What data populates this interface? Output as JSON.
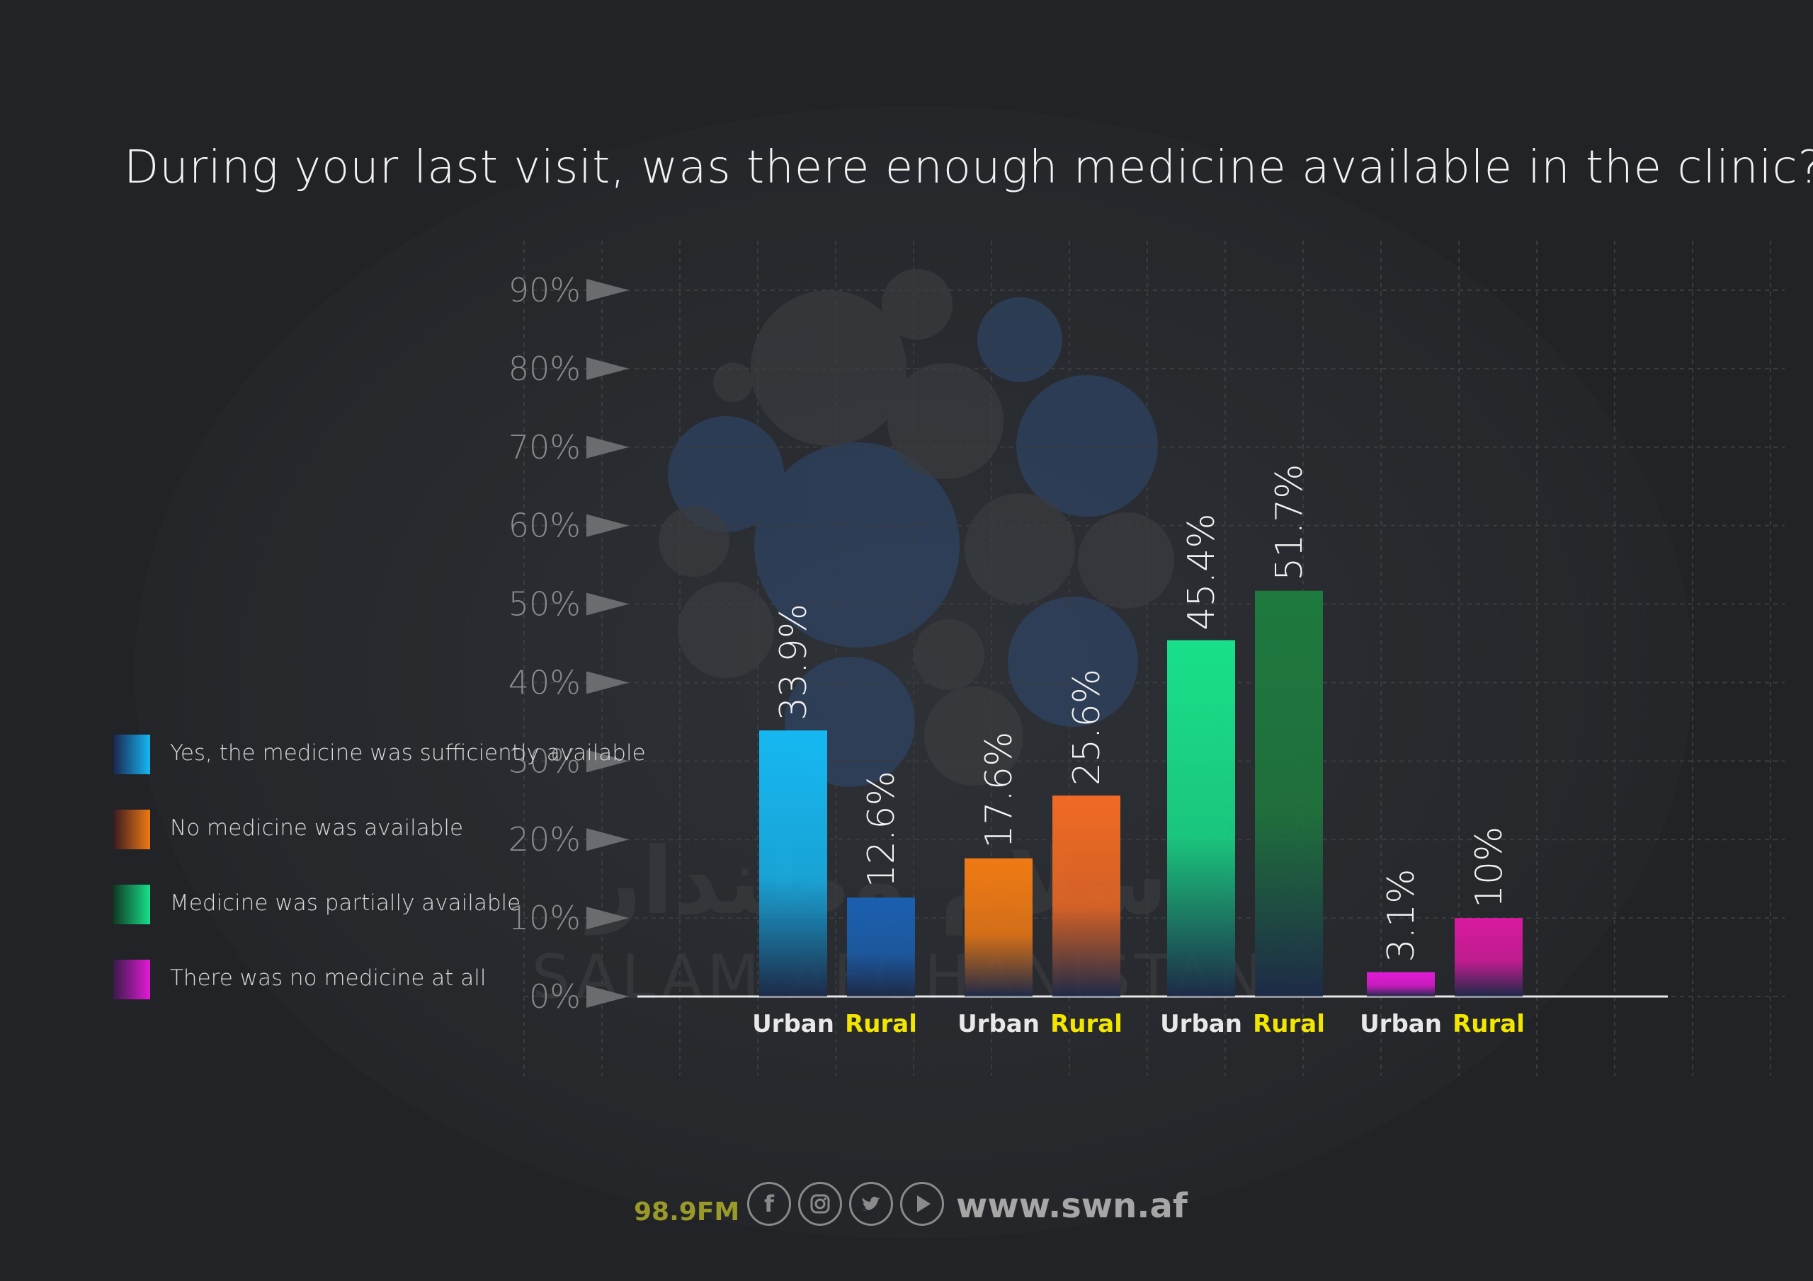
{
  "title": "During your last visit, was there enough medicine available in the clinic?",
  "colors": {
    "background": "#222326",
    "series": [
      "#16b8f2",
      "#f07a14",
      "#18e08a",
      "#e21ad6"
    ],
    "rural_bar": [
      "#1a5fb0",
      "#f06a24",
      "#1e7a3e",
      "#d81aa0"
    ],
    "urban_label": "#e8e8e8",
    "rural_label": "#f2e600"
  },
  "legend": [
    {
      "label": "Yes, the medicine was sufficiently available"
    },
    {
      "label": "No medicine was available"
    },
    {
      "label": "Medicine was partially available"
    },
    {
      "label": "There was no medicine at all"
    }
  ],
  "chart_data": {
    "type": "bar",
    "title": "During your last visit, was there enough medicine available in the clinic?",
    "ylim": [
      0,
      90
    ],
    "yticks": [
      "0%",
      "10%",
      "20%",
      "30%",
      "40%",
      "50%",
      "60%",
      "70%",
      "80%",
      "90%"
    ],
    "grid": true,
    "legend_position": "left",
    "groups": [
      {
        "series": "Yes, the medicine was sufficiently available",
        "bars": [
          {
            "category": "Urban",
            "value": 33.9,
            "label": "33.9%"
          },
          {
            "category": "Rural",
            "value": 12.6,
            "label": "12.6%"
          }
        ]
      },
      {
        "series": "No medicine was available",
        "bars": [
          {
            "category": "Urban",
            "value": 17.6,
            "label": "17.6%"
          },
          {
            "category": "Rural",
            "value": 25.6,
            "label": "25.6%"
          }
        ]
      },
      {
        "series": "Medicine was partially available",
        "bars": [
          {
            "category": "Urban",
            "value": 45.4,
            "label": "45.4%"
          },
          {
            "category": "Rural",
            "value": 51.7,
            "label": "51.7%"
          }
        ]
      },
      {
        "series": "There was no medicine at all",
        "bars": [
          {
            "category": "Urban",
            "value": 3.1,
            "label": "3.1%"
          },
          {
            "category": "Rural",
            "value": 10,
            "label": "10%"
          }
        ]
      }
    ]
  },
  "watermark": {
    "arabic": "سلام وطندار",
    "latin": "SALAM AFGHANISTAN"
  },
  "footer": {
    "frequency": "98.9FM",
    "social_icons": [
      "facebook-icon",
      "instagram-icon",
      "twitter-icon",
      "play-icon"
    ],
    "url": "www.swn.af"
  }
}
